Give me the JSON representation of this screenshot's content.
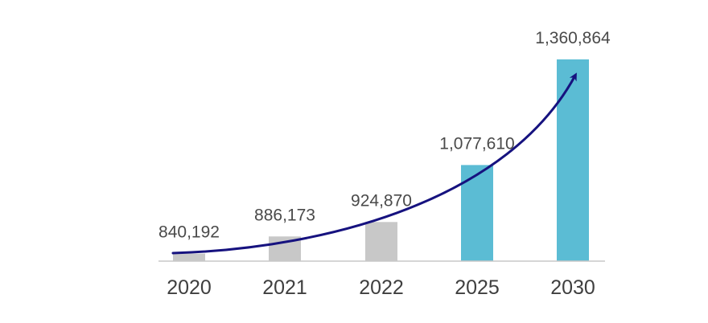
{
  "chart_data": {
    "type": "bar",
    "title": "",
    "xlabel": "",
    "ylabel": "",
    "categories": [
      "2020",
      "2021",
      "2022",
      "2025",
      "2030"
    ],
    "values": [
      840192,
      886173,
      924870,
      1077610,
      1360864
    ],
    "value_labels": [
      "840,192",
      "886,173",
      "924,870",
      "1,077,610",
      "1,360,864"
    ],
    "ylim": [
      820000,
      1380000
    ],
    "grid": false,
    "legend": "none",
    "annotation": "upward growth trend arrow",
    "colors": {
      "historical": "#c8c8c8",
      "projected": "#5bbcd4",
      "arrow": "#16127f",
      "axis": "#c8c8c8"
    },
    "projected_from_index": 3
  }
}
